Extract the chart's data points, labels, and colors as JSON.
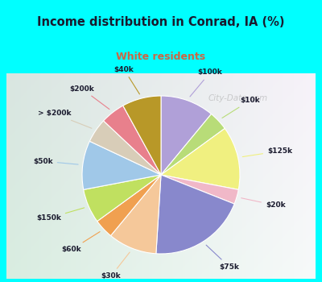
{
  "title": "Income distribution in Conrad, IA (%)",
  "subtitle": "White residents",
  "title_color": "#1a1a2e",
  "subtitle_color": "#cc6644",
  "bg_cyan": "#00ffff",
  "bg_chart": "#d8ede0",
  "watermark": "City-Data.com",
  "labels": [
    "$100k",
    "$10k",
    "$125k",
    "$20k",
    "$75k",
    "$30k",
    "$60k",
    "$150k",
    "$50k",
    "> $200k",
    "$200k",
    "$40k"
  ],
  "values": [
    11,
    4,
    13,
    3,
    20,
    10,
    4,
    7,
    10,
    5,
    5,
    8
  ],
  "colors": [
    "#b0a0d8",
    "#b8dc78",
    "#f0f080",
    "#f0b8c8",
    "#8888cc",
    "#f5c89a",
    "#f0a050",
    "#c0e060",
    "#a0c8e8",
    "#d8cdb8",
    "#e8808c",
    "#b89828"
  ],
  "start_angle": 90,
  "label_line_colors": [
    "#b0a0d8",
    "#b8dc78",
    "#f0f080",
    "#f0b8c8",
    "#8888cc",
    "#f5c89a",
    "#f0a050",
    "#c0e060",
    "#a0c8e8",
    "#d8cdb8",
    "#e8808c",
    "#b89828"
  ]
}
